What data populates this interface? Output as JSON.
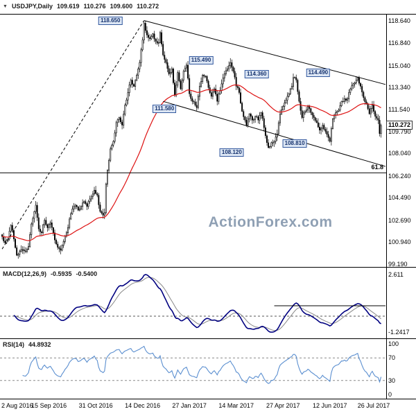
{
  "header": {
    "marker": "▼",
    "symbol": "USDJPY,Daily",
    "open": "109.619",
    "high": "110.276",
    "low": "109.600",
    "close": "110.272"
  },
  "watermark": "ActionForex.com",
  "colors": {
    "up_candle": "#ffffff",
    "down_candle": "#000000",
    "candle_outline": "#000000",
    "ma_line": "#dd1111",
    "macd_line": "#000080",
    "macd_signal": "#888888",
    "rsi_line": "#5b8fd0",
    "overlay_line": "#000000",
    "swing_box_bg": "#dce6f4",
    "swing_box_border": "#33589e",
    "swing_box_text": "#15326e",
    "watermark": "#8fa0b4"
  },
  "main_chart": {
    "price_axis_labels": [
      "118.640",
      "116.840",
      "115.040",
      "113.340",
      "111.540",
      "109.790",
      "108.040",
      "106.240",
      "104.490",
      "102.690",
      "100.940",
      "99.190"
    ],
    "current_price_label": "110.272",
    "current_price_value": 110.272,
    "fib_label": "61.8",
    "fib_level": 106.49,
    "swing_labels": [
      {
        "text": "118.650",
        "day": 74,
        "price": 118.65
      },
      {
        "text": "115.490",
        "day": 136,
        "price": 115.49
      },
      {
        "text": "114.360",
        "day": 174,
        "price": 114.36
      },
      {
        "text": "114.490",
        "day": 216,
        "price": 114.49
      },
      {
        "text": "111.580",
        "day": 111,
        "price": 111.58
      },
      {
        "text": "108.120",
        "day": 157,
        "price": 108.12
      },
      {
        "text": "108.810",
        "day": 200,
        "price": 108.81
      }
    ],
    "trend_lines": {
      "dashed_rally": {
        "from": {
          "day": 0,
          "price": 100.4
        },
        "to": {
          "day": 97,
          "price": 118.66
        }
      },
      "channel_upper": {
        "from": {
          "day": 97,
          "price": 118.66
        },
        "to": {
          "day": 262,
          "price": 113.55
        }
      },
      "channel_lower": {
        "from": {
          "day": 110,
          "price": 112.2
        },
        "to": {
          "day": 262,
          "price": 107.0
        }
      }
    }
  },
  "macd_panel": {
    "label": "MACD(12,26,9)",
    "value_main": "-0.5935",
    "value_signal": "-0.5400",
    "axis_top": "2.611",
    "axis_bottom": "-1.2417",
    "resistance": {
      "from_day": 186,
      "to_day": 262,
      "value": 0.65
    }
  },
  "rsi_panel": {
    "label": "RSI(14)",
    "value": "44.8932",
    "axis_labels": [
      {
        "text": "100",
        "value": 100
      },
      {
        "text": "70",
        "value": 70
      },
      {
        "text": "30",
        "value": 30
      },
      {
        "text": "0",
        "value": 0
      }
    ],
    "dashed_levels": [
      70,
      30
    ]
  },
  "x_axis": {
    "plot_days": 263,
    "labels": [
      "2 Aug 2016",
      "15 Sep 2016",
      "31 Oct 2016",
      "14 Dec 2016",
      "27 Jan 2017",
      "14 Mar 2017",
      "27 Apr 2017",
      "12 Jun 2017",
      "26 Jul 2017"
    ],
    "days": [
      0,
      32,
      64,
      96,
      128,
      160,
      192,
      224,
      254
    ]
  },
  "chart_data": {
    "type": "candlestick",
    "symbol": "USDJPY",
    "timeframe": "Daily",
    "total_days": 260,
    "price_range": {
      "min": 98.97,
      "max": 119.08
    },
    "indicators": {
      "ma_type": "EMA",
      "ma_period": 55,
      "macd": [
        12,
        26,
        9
      ],
      "rsi_period": 14
    },
    "close_anchors": [
      [
        0,
        101.4
      ],
      [
        2,
        100.9
      ],
      [
        4,
        101.2
      ],
      [
        6,
        102.3
      ],
      [
        8,
        101.2
      ],
      [
        10,
        99.9
      ],
      [
        12,
        100.2
      ],
      [
        14,
        100.35
      ],
      [
        16,
        100.2
      ],
      [
        18,
        100.6
      ],
      [
        20,
        102.4
      ],
      [
        22,
        103.4
      ],
      [
        23,
        103.9
      ],
      [
        25,
        102.0
      ],
      [
        27,
        101.7
      ],
      [
        29,
        102.7
      ],
      [
        31,
        102.1
      ],
      [
        33,
        102.5
      ],
      [
        35,
        101.7
      ],
      [
        37,
        100.8
      ],
      [
        40,
        100.3
      ],
      [
        42,
        101.0
      ],
      [
        44,
        101.7
      ],
      [
        46,
        102.8
      ],
      [
        48,
        103.6
      ],
      [
        50,
        103.9
      ],
      [
        52,
        103.5
      ],
      [
        54,
        103.8
      ],
      [
        56,
        104.2
      ],
      [
        58,
        103.8
      ],
      [
        60,
        104.4
      ],
      [
        62,
        104.8
      ],
      [
        63,
        105.1
      ],
      [
        65,
        104.7
      ],
      [
        67,
        103.4
      ],
      [
        69,
        103.1
      ],
      [
        70,
        103.3
      ],
      [
        71,
        105.6
      ],
      [
        72,
        106.7
      ],
      [
        74,
        108.4
      ],
      [
        76,
        109.0
      ],
      [
        78,
        110.5
      ],
      [
        80,
        110.9
      ],
      [
        82,
        110.3
      ],
      [
        84,
        111.9
      ],
      [
        86,
        112.9
      ],
      [
        88,
        113.9
      ],
      [
        90,
        113.4
      ],
      [
        92,
        114.3
      ],
      [
        94,
        115.3
      ],
      [
        96,
        117.1
      ],
      [
        97,
        118.45
      ],
      [
        99,
        117.5
      ],
      [
        101,
        117.2
      ],
      [
        103,
        117.6
      ],
      [
        105,
        117.0
      ],
      [
        107,
        116.9
      ],
      [
        108,
        117.7
      ],
      [
        110,
        115.9
      ],
      [
        112,
        115.3
      ],
      [
        114,
        114.4
      ],
      [
        116,
        114.8
      ],
      [
        118,
        112.7
      ],
      [
        120,
        114.5
      ],
      [
        122,
        113.2
      ],
      [
        124,
        114.6
      ],
      [
        126,
        115.1
      ],
      [
        128,
        112.8
      ],
      [
        130,
        112.2
      ],
      [
        133,
        111.7
      ],
      [
        135,
        113.4
      ],
      [
        137,
        114.3
      ],
      [
        139,
        114.2
      ],
      [
        141,
        113.3
      ],
      [
        143,
        112.6
      ],
      [
        145,
        113.2
      ],
      [
        147,
        112.2
      ],
      [
        148,
        112.8
      ],
      [
        150,
        113.6
      ],
      [
        152,
        114.4
      ],
      [
        154,
        114.8
      ],
      [
        156,
        115.3
      ],
      [
        158,
        114.6
      ],
      [
        160,
        113.4
      ],
      [
        162,
        112.9
      ],
      [
        164,
        111.4
      ],
      [
        166,
        110.7
      ],
      [
        167,
        110.3
      ],
      [
        169,
        111.2
      ],
      [
        171,
        110.7
      ],
      [
        173,
        111.0
      ],
      [
        175,
        110.7
      ],
      [
        177,
        111.3
      ],
      [
        179,
        110.1
      ],
      [
        181,
        108.9
      ],
      [
        182,
        108.5
      ],
      [
        184,
        108.9
      ],
      [
        186,
        109.0
      ],
      [
        188,
        109.6
      ],
      [
        190,
        111.2
      ],
      [
        192,
        111.8
      ],
      [
        194,
        112.3
      ],
      [
        196,
        112.8
      ],
      [
        198,
        113.4
      ],
      [
        199,
        114.1
      ],
      [
        201,
        113.9
      ],
      [
        203,
        112.2
      ],
      [
        205,
        110.9
      ],
      [
        207,
        111.4
      ],
      [
        209,
        111.8
      ],
      [
        211,
        111.3
      ],
      [
        213,
        110.9
      ],
      [
        215,
        110.5
      ],
      [
        217,
        109.9
      ],
      [
        219,
        110.3
      ],
      [
        221,
        109.8
      ],
      [
        223,
        109.3
      ],
      [
        224,
        109.0
      ],
      [
        226,
        110.8
      ],
      [
        228,
        111.3
      ],
      [
        230,
        111.5
      ],
      [
        232,
        112.2
      ],
      [
        234,
        112.4
      ],
      [
        236,
        112.4
      ],
      [
        238,
        113.2
      ],
      [
        240,
        113.6
      ],
      [
        242,
        113.9
      ],
      [
        243,
        114.1
      ],
      [
        245,
        113.4
      ],
      [
        247,
        112.5
      ],
      [
        249,
        112.0
      ],
      [
        251,
        111.2
      ],
      [
        253,
        111.9
      ],
      [
        255,
        111.0
      ],
      [
        257,
        110.7
      ],
      [
        258,
        109.62
      ],
      [
        259,
        110.272
      ]
    ]
  }
}
